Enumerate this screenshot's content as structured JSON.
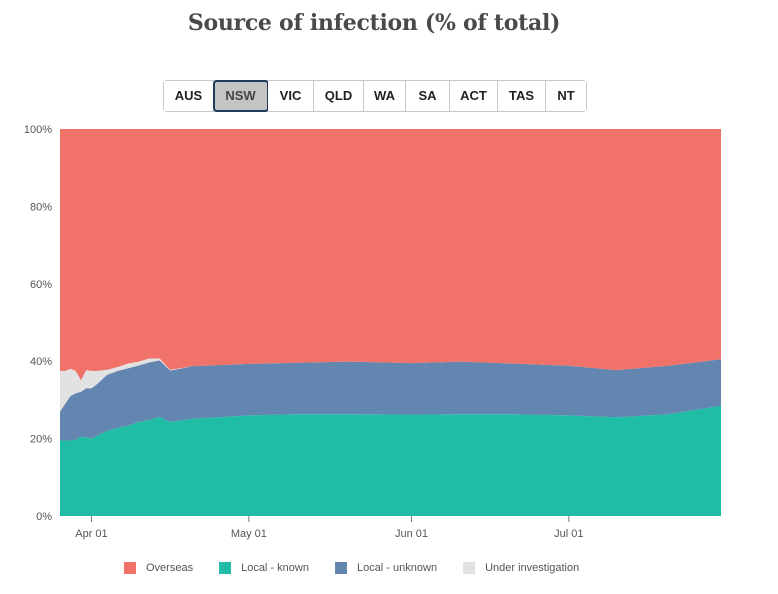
{
  "title": "Source of infection (% of total)",
  "tabs": [
    {
      "label": "AUS",
      "active": false
    },
    {
      "label": "NSW",
      "active": true
    },
    {
      "label": "VIC",
      "active": false
    },
    {
      "label": "QLD",
      "active": false
    },
    {
      "label": "WA",
      "active": false
    },
    {
      "label": "SA",
      "active": false
    },
    {
      "label": "ACT",
      "active": false
    },
    {
      "label": "TAS",
      "active": false
    },
    {
      "label": "NT",
      "active": false
    }
  ],
  "colors": {
    "overseas": "#f07268",
    "local_known": "#1fbda5",
    "local_unknown": "#6386b0",
    "under_investigation": "#e2e2e2"
  },
  "chart_data": {
    "type": "area",
    "stacked": true,
    "normalized_percent": true,
    "title": "Source of infection (% of total)",
    "x_ticks": [
      {
        "label": "Apr 01",
        "date": "2020-04-01"
      },
      {
        "label": "May 01",
        "date": "2020-05-01"
      },
      {
        "label": "Jun 01",
        "date": "2020-06-01"
      },
      {
        "label": "Jul 01",
        "date": "2020-07-01"
      }
    ],
    "y_ticks": [
      "0%",
      "20%",
      "40%",
      "60%",
      "80%",
      "100%"
    ],
    "ylim": [
      0,
      100
    ],
    "xlim": [
      "2020-03-26",
      "2020-07-30"
    ],
    "x": [
      "2020-03-26",
      "2020-03-27",
      "2020-03-28",
      "2020-03-29",
      "2020-03-30",
      "2020-03-31",
      "2020-04-01",
      "2020-04-02",
      "2020-04-04",
      "2020-04-06",
      "2020-04-08",
      "2020-04-10",
      "2020-04-12",
      "2020-04-14",
      "2020-04-16",
      "2020-04-18",
      "2020-04-20",
      "2020-04-25",
      "2020-05-01",
      "2020-05-10",
      "2020-05-20",
      "2020-06-01",
      "2020-06-10",
      "2020-06-20",
      "2020-07-01",
      "2020-07-10",
      "2020-07-20",
      "2020-07-30"
    ],
    "series": [
      {
        "name": "Local - known",
        "key": "local_known",
        "values": [
          19.5,
          19.5,
          19.5,
          19.7,
          20.5,
          20.3,
          20.0,
          20.7,
          22.0,
          22.8,
          23.3,
          24.3,
          24.8,
          25.6,
          24.3,
          24.7,
          25.1,
          25.5,
          26.0,
          26.3,
          26.3,
          26.2,
          26.3,
          26.3,
          26.0,
          25.5,
          26.3,
          28.5
        ]
      },
      {
        "name": "Local - unknown",
        "key": "local_unknown",
        "values": [
          7.5,
          9.5,
          11.5,
          12.0,
          11.6,
          12.7,
          13.0,
          13.3,
          14.5,
          14.7,
          14.9,
          14.6,
          14.9,
          14.6,
          13.3,
          13.4,
          13.6,
          13.5,
          13.3,
          13.3,
          13.6,
          13.3,
          13.6,
          13.1,
          12.8,
          12.2,
          12.5,
          12.0
        ]
      },
      {
        "name": "Under investigation",
        "key": "under_investigation",
        "values": [
          10.5,
          8.5,
          7.0,
          5.8,
          3.0,
          4.7,
          4.5,
          3.5,
          1.3,
          1.0,
          1.2,
          1.0,
          1.0,
          0.5,
          0.2,
          0.1,
          0.0,
          0.0,
          0.0,
          0.0,
          0.0,
          0.0,
          0.0,
          0.0,
          0.0,
          0.0,
          0.0,
          0.0
        ]
      },
      {
        "name": "Overseas",
        "key": "overseas",
        "values": [
          62.5,
          62.5,
          62.0,
          62.5,
          64.9,
          62.3,
          62.5,
          62.5,
          62.2,
          61.5,
          60.6,
          60.1,
          59.3,
          59.3,
          62.2,
          61.8,
          61.3,
          61.0,
          60.7,
          60.4,
          60.1,
          60.5,
          60.1,
          60.6,
          61.2,
          62.3,
          61.2,
          59.5
        ]
      }
    ],
    "legend": [
      {
        "label": "Overseas",
        "key": "overseas"
      },
      {
        "label": "Local - known",
        "key": "local_known"
      },
      {
        "label": "Local - unknown",
        "key": "local_unknown"
      },
      {
        "label": "Under investigation",
        "key": "under_investigation"
      }
    ],
    "legend_position": "bottom"
  }
}
